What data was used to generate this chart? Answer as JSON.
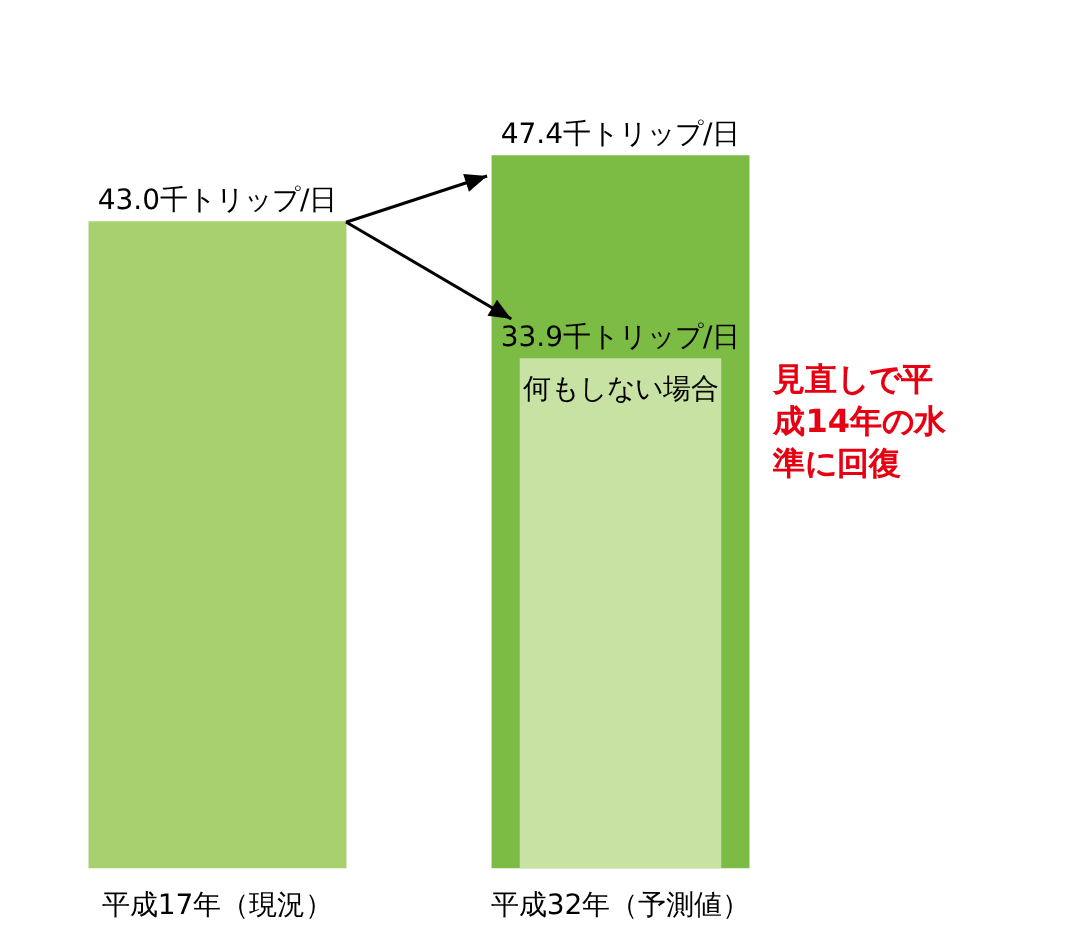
{
  "chart_data": {
    "type": "bar",
    "categories": [
      "平成17年（現況）",
      "平成32年（予測値）"
    ],
    "series": [
      {
        "color": "#a8d06e",
        "values": [
          43.0,
          null
        ],
        "value_labels": [
          "43.0千トリップ/日",
          null
        ]
      },
      {
        "name": "何もしない場合",
        "color": "#c8e2a4",
        "values": [
          null,
          33.9
        ],
        "value_labels": [
          null,
          "33.9千トリップ/日"
        ]
      },
      {
        "color": "#7cbc45",
        "values": [
          null,
          47.4
        ],
        "value_labels": [
          null,
          "47.4千トリップ/日"
        ]
      }
    ],
    "annotations": [
      "見直しで平成14年の水準に回復"
    ],
    "legend": false
  }
}
